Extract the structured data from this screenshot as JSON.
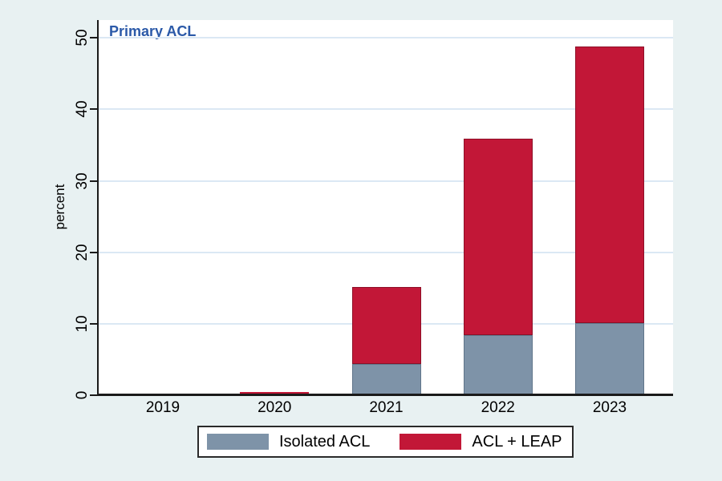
{
  "title": "Primary ACL",
  "ylabel": "percent",
  "colors": {
    "background": "#e8f1f2",
    "plot_background": "#ffffff",
    "gridline": "#dbe8f4",
    "axis": "#1a1a1a",
    "title_blue": "#2b59a8",
    "isolated_acl": "#7e93a8",
    "isolated_acl_border": "#60758a",
    "acl_leap": "#c21737",
    "acl_leap_border": "#8e0f27"
  },
  "legend": {
    "items": [
      {
        "label": "Isolated ACL",
        "color": "#7e93a8"
      },
      {
        "label": "ACL + LEAP",
        "color": "#c21737"
      }
    ]
  },
  "chart_data": {
    "type": "bar",
    "stacked": true,
    "title": "Primary ACL",
    "xlabel": "",
    "ylabel": "percent",
    "categories": [
      "2019",
      "2020",
      "2021",
      "2022",
      "2023"
    ],
    "series": [
      {
        "name": "Isolated ACL",
        "color": "#7e93a8",
        "border": "#60758a",
        "values": [
          0.1,
          0.1,
          4.4,
          8.4,
          10.1
        ]
      },
      {
        "name": "ACL + LEAP",
        "color": "#c21737",
        "border": "#8e0f27",
        "values": [
          0.1,
          0.3,
          10.7,
          27.5,
          38.7
        ]
      }
    ],
    "totals": [
      0.2,
      0.4,
      15.1,
      35.9,
      48.8
    ],
    "ylim": [
      0,
      52.5
    ],
    "yticks": [
      0,
      10,
      20,
      30,
      40,
      50
    ],
    "grid": true,
    "legend_position": "bottom"
  }
}
